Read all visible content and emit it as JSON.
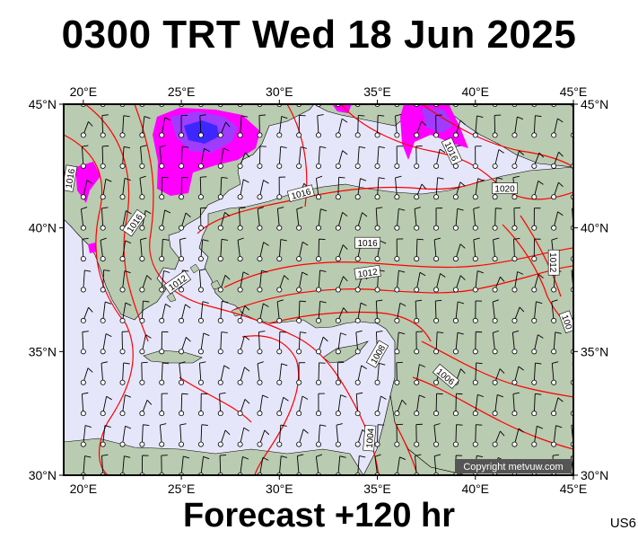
{
  "header": {
    "title": "0300 TRT Wed 18 Jun 2025"
  },
  "footer": {
    "forecast": "Forecast +120 hr",
    "code": "US6"
  },
  "copyright": "Copyright metvuw.com",
  "map": {
    "lon_range": [
      19,
      45
    ],
    "lat_range": [
      30,
      45
    ],
    "lon_ticks": [
      {
        "value": 20,
        "label": "20°E"
      },
      {
        "value": 25,
        "label": "25°E"
      },
      {
        "value": 30,
        "label": "30°E"
      },
      {
        "value": 35,
        "label": "35°E"
      },
      {
        "value": 40,
        "label": "40°E"
      },
      {
        "value": 45,
        "label": "45°E"
      }
    ],
    "lat_ticks": [
      {
        "value": 45,
        "label": "45°N"
      },
      {
        "value": 40,
        "label": "40°N"
      },
      {
        "value": 35,
        "label": "35°N"
      },
      {
        "value": 30,
        "label": "30°N"
      }
    ],
    "colors": {
      "sea": "#e6e6fa",
      "land": "#b9cbb0",
      "isobar": "#ff0000",
      "rain_light": "#ff00ff",
      "rain_mid": "#9f3cff",
      "rain_heavy": "#3c28ff"
    },
    "isobar_labels": [
      {
        "text": "1016",
        "lon": 19.3,
        "lat": 42.0,
        "angle": -80
      },
      {
        "text": "1016",
        "lon": 22.6,
        "lat": 40.2,
        "angle": -55
      },
      {
        "text": "1012",
        "lon": 24.8,
        "lat": 37.8,
        "angle": -35
      },
      {
        "text": "1016",
        "lon": 31.1,
        "lat": 41.4,
        "angle": -15
      },
      {
        "text": "1016",
        "lon": 34.5,
        "lat": 39.4,
        "angle": 0
      },
      {
        "text": "1012",
        "lon": 34.5,
        "lat": 38.2,
        "angle": -8
      },
      {
        "text": "1008",
        "lon": 35.0,
        "lat": 34.9,
        "angle": -60
      },
      {
        "text": "1004",
        "lon": 34.6,
        "lat": 31.5,
        "angle": -85
      },
      {
        "text": "1016",
        "lon": 38.8,
        "lat": 43.1,
        "angle": 65
      },
      {
        "text": "1020",
        "lon": 41.5,
        "lat": 41.6,
        "angle": 0
      },
      {
        "text": "1006",
        "lon": 38.5,
        "lat": 34.0,
        "angle": 40
      },
      {
        "text": "1012",
        "lon": 44.0,
        "lat": 38.6,
        "angle": 90
      },
      {
        "text": "100",
        "lon": 44.7,
        "lat": 36.2,
        "angle": 70
      }
    ]
  }
}
